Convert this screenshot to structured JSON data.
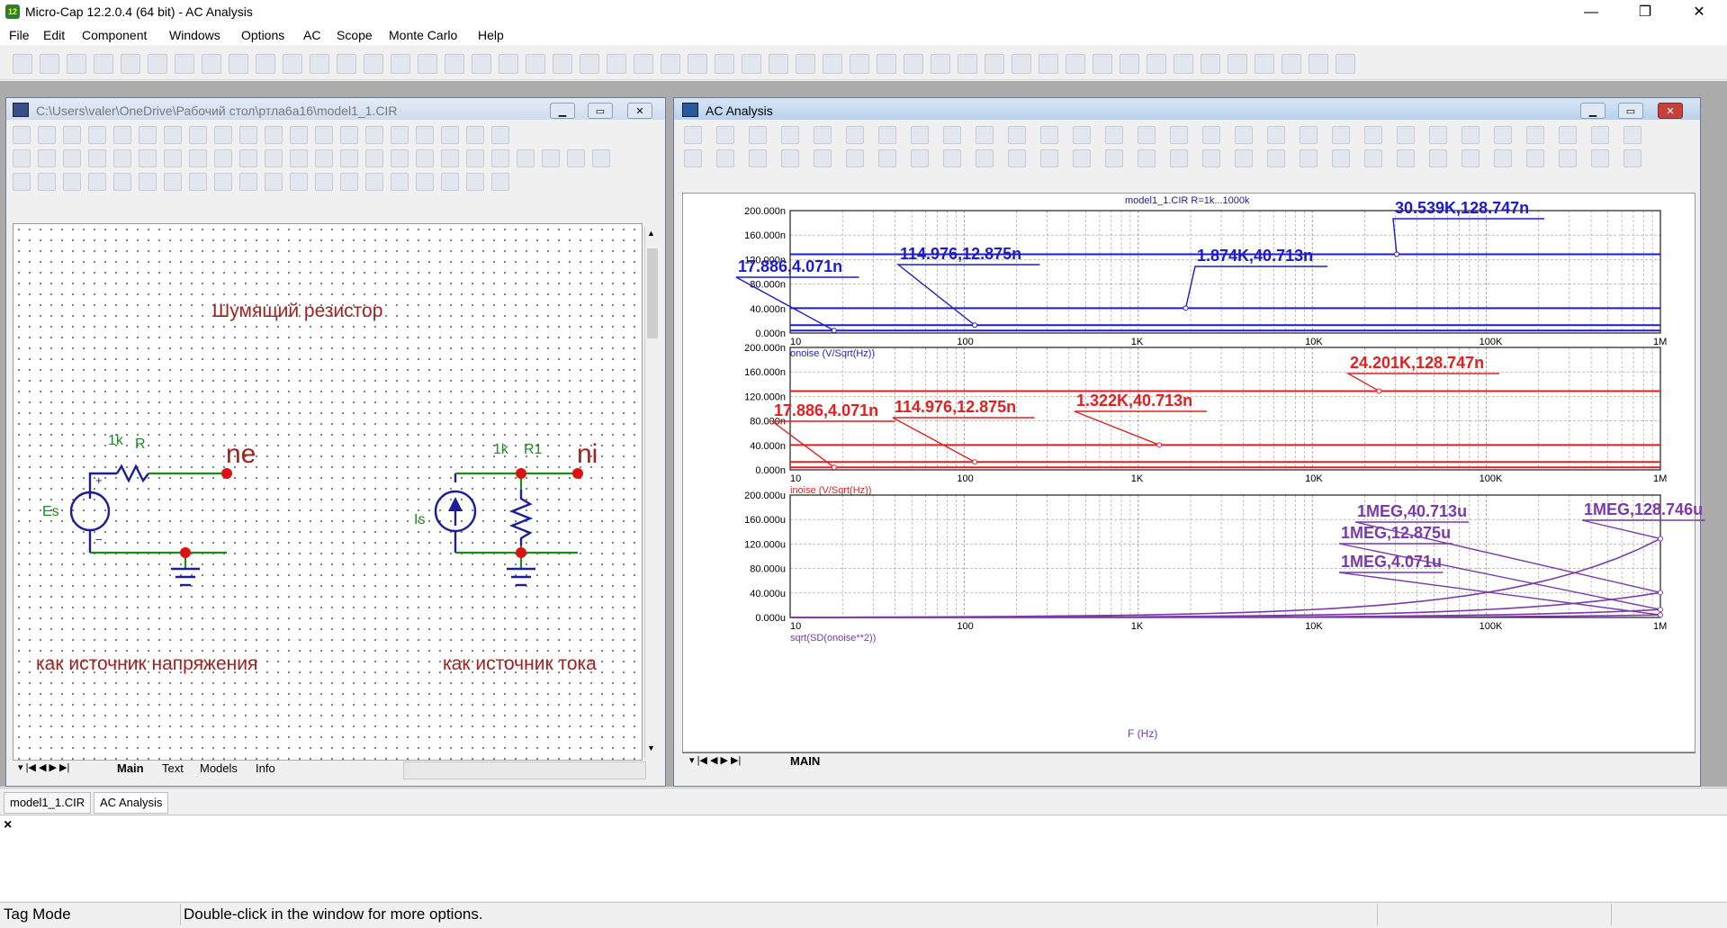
{
  "app": {
    "title": "Micro-Cap 12.2.0.4 (64 bit) - AC Analysis",
    "icon_text": "12",
    "minimize": "—",
    "maximize": "❐",
    "close": "✕"
  },
  "menu": [
    "File",
    "Edit",
    "Component",
    "Windows",
    "Options",
    "AC",
    "Scope",
    "Monte Carlo",
    "Help"
  ],
  "schematic_window": {
    "title": "C:\\Users\\valer\\OneDrive\\Рабочий стол\\ртла6а16\\model1_1.CIR",
    "heading": "Шумящий резистор",
    "left_caption": "как источник напряжения",
    "right_caption": "как источник тока",
    "labels": {
      "r_val": "1k",
      "r_name": "R",
      "node_ne": "ne",
      "src_es": "Es",
      "r1_val": "1k",
      "r1_name": "R1",
      "node_ni": "ni",
      "src_is": "Is"
    },
    "tabs": [
      "Main",
      "Text",
      "Models",
      "Info"
    ]
  },
  "analysis_window": {
    "title": "AC Analysis",
    "plot_title": "model1_1.CIR R=1k...1000k",
    "x_axis_title": "F (Hz)",
    "tab": "MAIN"
  },
  "doc_tabs": [
    "model1_1.CIR",
    "AC Analysis"
  ],
  "output": {
    "close": "×"
  },
  "status": {
    "mode": "Tag Mode",
    "hint": "Double-click in the window for more options."
  },
  "colors": {
    "onoise": "#1c1cc8",
    "inoise": "#e02020",
    "sd": "#7a3aa8",
    "axes": "#1d1d1d",
    "grid": "#9a9a9a"
  },
  "chart_data": [
    {
      "type": "line",
      "x_scale": "log",
      "xlim": [
        10,
        1000000
      ],
      "x_ticks": [
        "10",
        "100",
        "1K",
        "10K",
        "100K",
        "1M"
      ],
      "ylim": [
        0,
        200
      ],
      "y_ticks": [
        "0.000n",
        "40.000n",
        "80.000n",
        "120.000n",
        "160.000n",
        "200.000n"
      ],
      "ylabel": "onoise (V/Sqrt(Hz))",
      "grid": true,
      "series": [
        {
          "values": [
            4.071,
            4.071
          ]
        },
        {
          "values": [
            12.875,
            12.875
          ]
        },
        {
          "values": [
            40.713,
            40.713
          ]
        },
        {
          "values": [
            128.747,
            128.747
          ]
        }
      ],
      "annotations": [
        {
          "text": "17.886,4.071n",
          "x": 17.886,
          "y": 4.071
        },
        {
          "text": "114.976,12.875n",
          "x": 114.976,
          "y": 12.875
        },
        {
          "text": "1.874K,40.713n",
          "x": 1874,
          "y": 40.713
        },
        {
          "text": "30.539K,128.747n",
          "x": 30539,
          "y": 128.747
        }
      ]
    },
    {
      "type": "line",
      "x_scale": "log",
      "xlim": [
        10,
        1000000
      ],
      "x_ticks": [
        "10",
        "100",
        "1K",
        "10K",
        "100K",
        "1M"
      ],
      "ylim": [
        0,
        200
      ],
      "y_ticks": [
        "0.000n",
        "40.000n",
        "80.000n",
        "120.000n",
        "160.000n",
        "200.000n"
      ],
      "ylabel": "inoise (V/Sqrt(Hz))",
      "grid": true,
      "series": [
        {
          "values": [
            4.071,
            4.071
          ]
        },
        {
          "values": [
            12.875,
            12.875
          ]
        },
        {
          "values": [
            40.713,
            40.713
          ]
        },
        {
          "values": [
            128.747,
            128.747
          ]
        }
      ],
      "annotations": [
        {
          "text": "17.886,4.071n",
          "x": 17.886,
          "y": 4.071
        },
        {
          "text": "114.976,12.875n",
          "x": 114.976,
          "y": 12.875
        },
        {
          "text": "1.322K,40.713n",
          "x": 1322,
          "y": 40.713
        },
        {
          "text": "24.201K,128.747n",
          "x": 24201,
          "y": 128.747
        }
      ]
    },
    {
      "type": "line",
      "x_scale": "log",
      "xlim": [
        10,
        1000000
      ],
      "x_ticks": [
        "10",
        "100",
        "1K",
        "10K",
        "100K",
        "1M"
      ],
      "ylim": [
        0,
        200
      ],
      "y_ticks": [
        "0.000u",
        "40.000u",
        "80.000u",
        "120.000u",
        "160.000u",
        "200.000u"
      ],
      "ylabel": "sqrt(SD(onoise**2))",
      "xlabel": "F (Hz)",
      "grid": true,
      "series": [
        {
          "values": [
            4.071
          ]
        },
        {
          "values": [
            12.875
          ]
        },
        {
          "values": [
            40.713
          ]
        },
        {
          "values": [
            128.746
          ]
        }
      ],
      "annotations": [
        {
          "text": "1MEG,4.071u",
          "x": 1000000,
          "y": 4.071
        },
        {
          "text": "1MEG,12.875u",
          "x": 1000000,
          "y": 12.875
        },
        {
          "text": "1MEG,40.713u",
          "x": 1000000,
          "y": 40.713
        },
        {
          "text": "1MEG,128.746u",
          "x": 1000000,
          "y": 128.746
        }
      ]
    }
  ]
}
